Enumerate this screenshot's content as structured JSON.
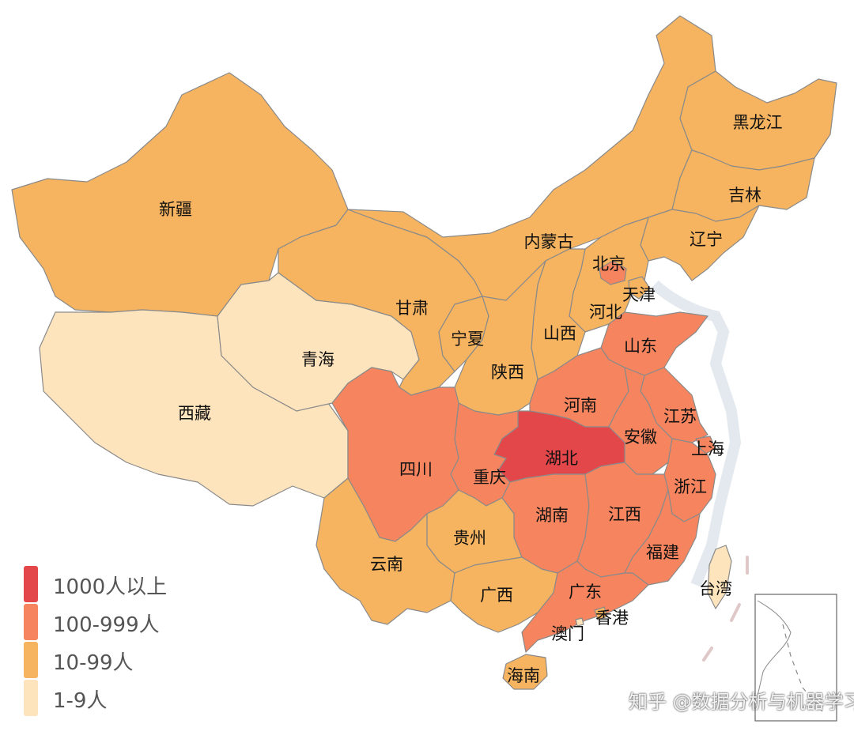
{
  "colors": {
    "level_1000_plus": "#e4474a",
    "level_100_999": "#f6855f",
    "level_10_99": "#f6b460",
    "level_1_9": "#fde4bd",
    "border": "#8a8a8a",
    "label": "#111111"
  },
  "legend": [
    {
      "label": "1000人以上",
      "color": "#e4474a"
    },
    {
      "label": "100-999人",
      "color": "#f6855f"
    },
    {
      "label": "10-99人",
      "color": "#f6b460"
    },
    {
      "label": "1-9人",
      "color": "#fde4bd"
    }
  ],
  "provinces": {
    "xinjiang": {
      "name": "新疆",
      "level": "10-99人"
    },
    "xizang": {
      "name": "西藏",
      "level": "1-9人"
    },
    "qinghai": {
      "name": "青海",
      "level": "1-9人"
    },
    "gansu": {
      "name": "甘肃",
      "level": "10-99人"
    },
    "neimenggu": {
      "name": "内蒙古",
      "level": "10-99人"
    },
    "heilongjiang": {
      "name": "黑龙江",
      "level": "10-99人"
    },
    "jilin": {
      "name": "吉林",
      "level": "10-99人"
    },
    "liaoning": {
      "name": "辽宁",
      "level": "10-99人"
    },
    "beijing": {
      "name": "北京",
      "level": "100-999人"
    },
    "tianjin": {
      "name": "天津",
      "level": "10-99人"
    },
    "hebei": {
      "name": "河北",
      "level": "10-99人"
    },
    "shanxi": {
      "name": "山西",
      "level": "10-99人"
    },
    "shandong": {
      "name": "山东",
      "level": "100-999人"
    },
    "ningxia": {
      "name": "宁夏",
      "level": "10-99人"
    },
    "shaanxi": {
      "name": "陕西",
      "level": "10-99人"
    },
    "henan": {
      "name": "河南",
      "level": "100-999人"
    },
    "jiangsu": {
      "name": "江苏",
      "level": "100-999人"
    },
    "anhui": {
      "name": "安徽",
      "level": "100-999人"
    },
    "shanghai": {
      "name": "上海",
      "level": "100-999人"
    },
    "hubei": {
      "name": "湖北",
      "level": "1000人以上"
    },
    "sichuan": {
      "name": "四川",
      "level": "100-999人"
    },
    "chongqing": {
      "name": "重庆",
      "level": "100-999人"
    },
    "zhejiang": {
      "name": "浙江",
      "level": "100-999人"
    },
    "hunan": {
      "name": "湖南",
      "level": "100-999人"
    },
    "jiangxi": {
      "name": "江西",
      "level": "100-999人"
    },
    "guizhou": {
      "name": "贵州",
      "level": "10-99人"
    },
    "yunnan": {
      "name": "云南",
      "level": "10-99人"
    },
    "fujian": {
      "name": "福建",
      "level": "100-999人"
    },
    "guangxi": {
      "name": "广西",
      "level": "10-99人"
    },
    "guangdong": {
      "name": "广东",
      "level": "100-999人"
    },
    "taiwan": {
      "name": "台湾",
      "level": "1-9人"
    },
    "hongkong": {
      "name": "香港",
      "level": "10-99人"
    },
    "macau": {
      "name": "澳门",
      "level": "1-9人"
    },
    "hainan": {
      "name": "海南",
      "level": "10-99人"
    }
  },
  "watermark": "知乎 @数据分析与机器学习"
}
